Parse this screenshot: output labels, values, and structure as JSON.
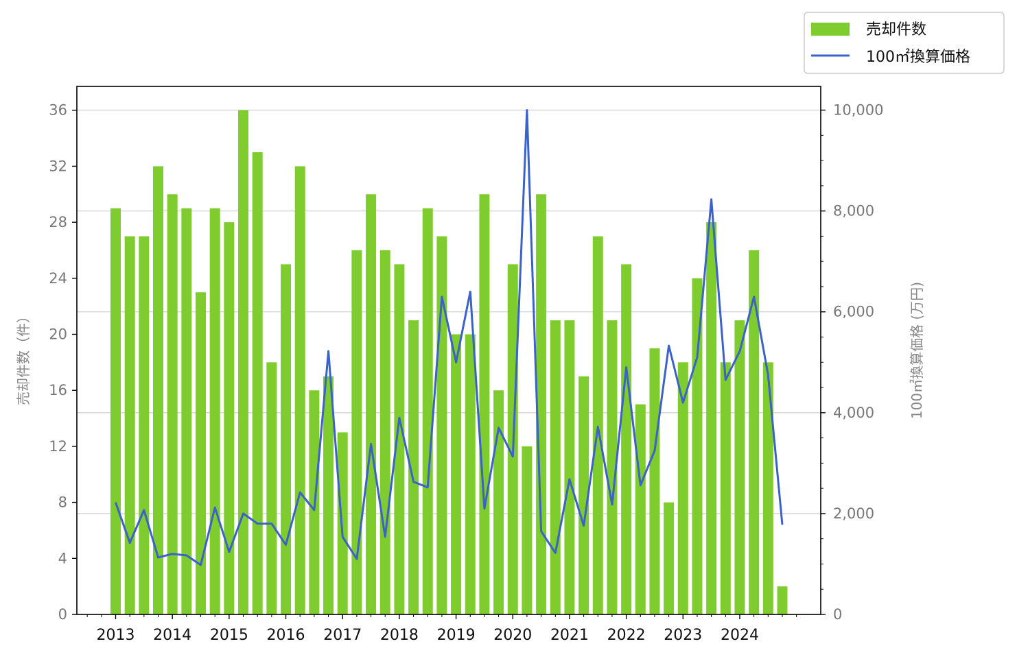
{
  "chart_data": {
    "type": "bar+line",
    "title": "",
    "x_tick_labels": [
      "2013",
      "2014",
      "2015",
      "2016",
      "2017",
      "2018",
      "2019",
      "2020",
      "2021",
      "2022",
      "2023",
      "2024"
    ],
    "bar_series": {
      "name": "売却件数",
      "color": "#7fcc2f",
      "values": [
        29,
        27,
        27,
        32,
        30,
        29,
        23,
        29,
        28,
        36,
        33,
        18,
        25,
        32,
        16,
        17,
        13,
        26,
        30,
        26,
        25,
        21,
        29,
        27,
        20,
        20,
        30,
        16,
        25,
        12,
        30,
        21,
        21,
        17,
        27,
        21,
        25,
        15,
        19,
        8,
        18,
        24,
        28,
        18,
        21,
        26,
        18,
        2
      ]
    },
    "line_series": {
      "name": "100㎡換算価格",
      "color": "#3a62c8",
      "values": [
        2220,
        1420,
        2070,
        1130,
        1200,
        1170,
        980,
        2120,
        1240,
        2000,
        1800,
        1800,
        1380,
        2420,
        2070,
        5220,
        1540,
        1100,
        3380,
        1540,
        3900,
        2630,
        2520,
        6300,
        5000,
        6400,
        2100,
        3700,
        3130,
        10000,
        1650,
        1220,
        2680,
        1760,
        3720,
        2180,
        4900,
        2560,
        3250,
        5330,
        4200,
        5100,
        8230,
        4650,
        5220,
        6300,
        4750,
        1780
      ]
    },
    "y_left": {
      "label": "売却件数（件）",
      "ylim": [
        0,
        37.7
      ],
      "ticks": [
        0,
        4,
        8,
        12,
        16,
        20,
        24,
        28,
        32,
        36
      ],
      "tick_labels": [
        "0",
        "4",
        "8",
        "12",
        "16",
        "20",
        "24",
        "28",
        "32",
        "36"
      ]
    },
    "y_right": {
      "label": "100㎡換算価格 (万円)",
      "ylim": [
        0,
        10470
      ],
      "ticks": [
        0,
        2000,
        4000,
        6000,
        8000,
        10000
      ],
      "tick_labels": [
        "0",
        "2,000",
        "4,000",
        "6,000",
        "8,000",
        "10,000"
      ]
    },
    "grid": "horizontal",
    "legend_position": "top-right"
  }
}
